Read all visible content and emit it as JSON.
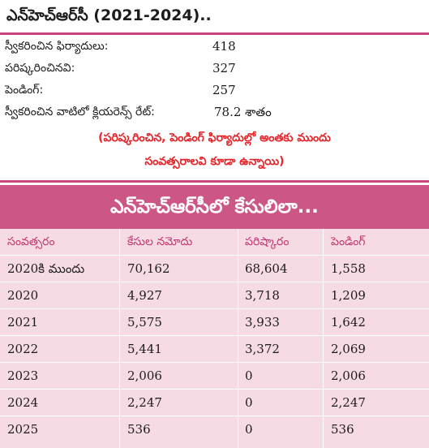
{
  "summary": {
    "title": "ఎన్‌హెచ్‌ఆర్‌సీ (2021-2024)..",
    "stats": [
      {
        "label": "స్వీకరించిన ఫిర్యాదులు:",
        "value": "418"
      },
      {
        "label": "పరిష్కరించినవి:",
        "value": "327"
      },
      {
        "label": "పెండింగ్:",
        "value": "257"
      },
      {
        "label": "స్వీకరించిన వాటిలో క్లియరెన్స్ రేట్:",
        "value": "78.2 శాతం"
      }
    ],
    "note_line1": "(పరిష్కరించిన, పెండింగ్ ఫిర్యాదుల్లో అంతకు ముందు",
    "note_line2": "సంవత్సరాలవి కూడా ఉన్నాయి)"
  },
  "table": {
    "title": "ఎన్‌హెచ్‌ఆర్‌సీలో కేసులిలా...",
    "headers": [
      "సంవత్సరం",
      "కేసుల నమోదు",
      "పరిష్కారం",
      "పెండింగ్"
    ],
    "rows": [
      [
        "2020కి ముందు",
        "70,162",
        "68,604",
        "1,558"
      ],
      [
        "2020",
        "4,927",
        "3,718",
        "1,209"
      ],
      [
        "2021",
        "5,575",
        "3,933",
        "1,642"
      ],
      [
        "2022",
        "5,441",
        "3,372",
        "2,069"
      ],
      [
        "2023",
        "2,006",
        "0",
        "2,006"
      ],
      [
        "2024",
        "2,247",
        "0",
        "2,247"
      ],
      [
        "2025",
        "536",
        "0",
        "536"
      ]
    ]
  },
  "colors": {
    "accent": "#c8467d",
    "table_title_bg": "#cc5787",
    "table_bg": "#f6dbe5",
    "header_text": "#c2366f",
    "note_text": "#e3262b"
  }
}
